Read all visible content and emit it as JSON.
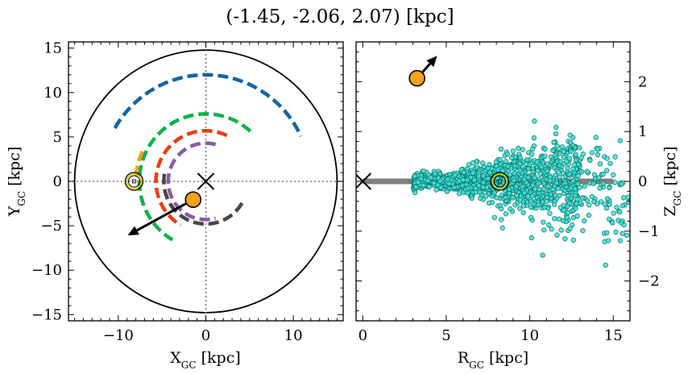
{
  "title": "(-1.45, -2.06, 2.07) [kpc]",
  "chart_data": [
    {
      "type": "scatter",
      "panel": "left",
      "xlabel_main": "X",
      "xlabel_sub": "GC",
      "xlabel_unit": " [kpc]",
      "ylabel_main": "Y",
      "ylabel_sub": "GC",
      "ylabel_unit": " [kpc]",
      "xlim": [
        -15.7,
        15.7
      ],
      "ylim": [
        -15.7,
        15.7
      ],
      "xticks": [
        -10,
        0,
        10
      ],
      "yticks": [
        -15,
        -10,
        -5,
        0,
        5,
        10,
        15
      ],
      "grid": false,
      "galaxy_edge_radius": 15,
      "center_marker": [
        0,
        0
      ],
      "sun": [
        -8.2,
        0.0
      ],
      "object": {
        "x": -1.45,
        "y": -2.06,
        "vx": -6.5,
        "vy": -3.5
      },
      "spiral_arms": [
        {
          "color": "#1464a0",
          "radius": 12,
          "theta_deg": [
            150,
            25
          ]
        },
        {
          "color": "#10b048",
          "radius": 7.6,
          "theta_deg": [
            48,
            240
          ]
        },
        {
          "color": "#ea3e12",
          "radius": 5.7,
          "theta_deg": [
            65,
            240
          ]
        },
        {
          "color": "#8c5aa0",
          "radius": 4.3,
          "theta_deg": [
            75,
            285
          ]
        },
        {
          "color": "#474747",
          "radius": 4.8,
          "theta_deg": [
            170,
            330
          ]
        },
        {
          "color": "#f5a020",
          "radius": 8.0,
          "theta_deg": [
            155,
            180
          ]
        }
      ]
    },
    {
      "type": "scatter",
      "panel": "right",
      "xlabel_main": "R",
      "xlabel_sub": "GC",
      "xlabel_unit": " [kpc]",
      "ylabel_main": "Z",
      "ylabel_sub": "GC",
      "ylabel_unit": " [kpc]",
      "xlim": [
        -0.4,
        16.0
      ],
      "ylim": [
        -2.8,
        2.8
      ],
      "xticks": [
        0,
        5,
        10,
        15
      ],
      "yticks": [
        -2,
        -1,
        0,
        1,
        2
      ],
      "grid": false,
      "disk_line": {
        "z": 0,
        "r": [
          0,
          15
        ]
      },
      "center_marker": [
        0,
        0
      ],
      "sun": [
        8.2,
        0.0
      ],
      "object": {
        "r": 3.25,
        "z": 2.07,
        "vr": 1.2,
        "vz": 0.45
      },
      "stars": {
        "count": 1200,
        "color": "#3fe0d0",
        "edge": "#0b6f6a",
        "r_range": [
          1.5,
          16.0
        ]
      }
    }
  ]
}
